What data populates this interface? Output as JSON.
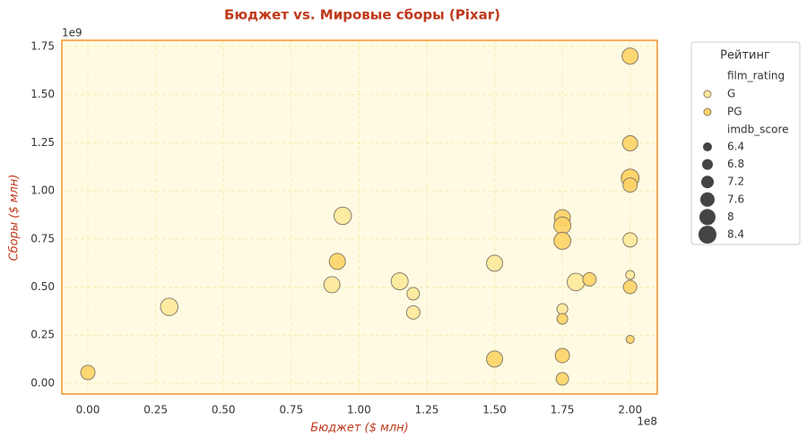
{
  "chart_data": {
    "type": "scatter",
    "title": "Бюджет vs. Мировые сборы (Pixar)",
    "x_label": "Бюджет ($ млн)",
    "y_label": "Сборы ($ млн)",
    "x_offset_label": "1e8",
    "y_offset_label": "1e9",
    "xlim": [
      -9600000,
      210000000
    ],
    "ylim": [
      -56000000,
      1782000000
    ],
    "xticks": [
      {
        "value": 0,
        "label": "0.00"
      },
      {
        "value": 25000000,
        "label": "0.25"
      },
      {
        "value": 50000000,
        "label": "0.50"
      },
      {
        "value": 75000000,
        "label": "0.75"
      },
      {
        "value": 100000000,
        "label": "1.00"
      },
      {
        "value": 125000000,
        "label": "1.25"
      },
      {
        "value": 150000000,
        "label": "1.50"
      },
      {
        "value": 175000000,
        "label": "1.75"
      },
      {
        "value": 200000000,
        "label": "2.00"
      }
    ],
    "yticks": [
      {
        "value": 0,
        "label": "0.00"
      },
      {
        "value": 250000000,
        "label": "0.25"
      },
      {
        "value": 500000000,
        "label": "0.50"
      },
      {
        "value": 750000000,
        "label": "0.75"
      },
      {
        "value": 1000000000,
        "label": "1.00"
      },
      {
        "value": 1250000000,
        "label": "1.25"
      },
      {
        "value": 1500000000,
        "label": "1.50"
      },
      {
        "value": 1750000000,
        "label": "1.75"
      }
    ],
    "grid": true,
    "legend_title": "Рейтинг",
    "legend_color_title": "film_rating",
    "legend_size_title": "imdb_score",
    "size_legend": [
      6.4,
      6.8,
      7.2,
      7.6,
      8.0,
      8.4
    ],
    "series": [
      {
        "name": "G",
        "color": "#fde99a",
        "x": [
          30000000,
          94000000,
          90000000,
          115000000,
          120000000,
          120000000,
          150000000,
          175000000,
          180000000,
          200000000,
          200000000,
          200000000
        ],
        "values": [
          397000000,
          870000000,
          512000000,
          530000000,
          465000000,
          368000000,
          624000000,
          386000000,
          526000000,
          1073000000,
          745000000,
          563000000
        ],
        "sizes": [
          8.3,
          8.3,
          8.0,
          8.2,
          7.2,
          7.4,
          8.0,
          6.8,
          8.3,
          7.8,
          7.6,
          6.4
        ]
      },
      {
        "name": "PG",
        "color": "#fdd365",
        "x": [
          0,
          92000000,
          150000000,
          175000000,
          175000000,
          175000000,
          175000000,
          175000000,
          175000000,
          185000000,
          200000000,
          200000000,
          200000000,
          200000000,
          200000000,
          200000000
        ],
        "values": [
          56000000,
          633000000,
          126000000,
          860000000,
          820000000,
          740000000,
          335000000,
          144000000,
          23000000,
          540000000,
          1700000000,
          1247000000,
          1066000000,
          1030000000,
          500000000,
          228000000
        ],
        "sizes": [
          7.6,
          8.0,
          8.0,
          8.0,
          8.2,
          8.2,
          6.8,
          7.6,
          7.2,
          7.4,
          8.0,
          7.8,
          8.4,
          7.6,
          7.4,
          6.2
        ]
      }
    ]
  }
}
